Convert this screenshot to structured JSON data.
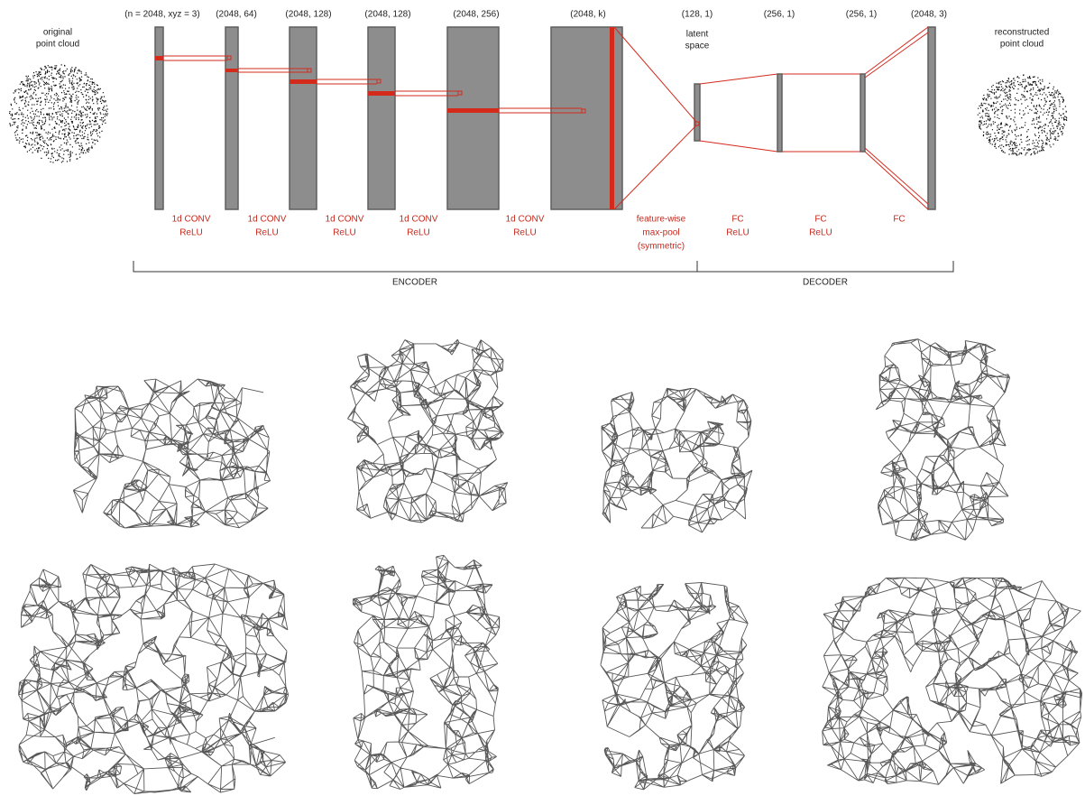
{
  "input_label": [
    "original",
    "point cloud"
  ],
  "output_label": [
    "reconstructed",
    "point cloud"
  ],
  "layers": [
    {
      "shape": "(n = 2048,  xyz = 3)"
    },
    {
      "shape": "(2048, 64)"
    },
    {
      "shape": "(2048, 128)"
    },
    {
      "shape": "(2048, 128)"
    },
    {
      "shape": "(2048, 256)"
    },
    {
      "shape": "(2048, k)"
    },
    {
      "shape": "(128, 1)",
      "note": [
        "latent",
        "space"
      ]
    },
    {
      "shape": "(256, 1)"
    },
    {
      "shape": "(256, 1)"
    },
    {
      "shape": "(2048, 3)"
    }
  ],
  "operations": [
    {
      "lines": [
        "1d CONV",
        "ReLU"
      ]
    },
    {
      "lines": [
        "1d CONV",
        "ReLU"
      ]
    },
    {
      "lines": [
        "1d CONV",
        "ReLU"
      ]
    },
    {
      "lines": [
        "1d CONV",
        "ReLU"
      ]
    },
    {
      "lines": [
        "1d CONV",
        "ReLU"
      ]
    },
    {
      "lines": [
        "feature-wise",
        "max-pool",
        "(symmetric)"
      ]
    },
    {
      "lines": [
        "FC",
        "ReLU"
      ]
    },
    {
      "lines": [
        "FC",
        "ReLU"
      ]
    },
    {
      "lines": [
        "FC"
      ]
    }
  ],
  "sections": [
    "ENCODER",
    "DECODER"
  ]
}
